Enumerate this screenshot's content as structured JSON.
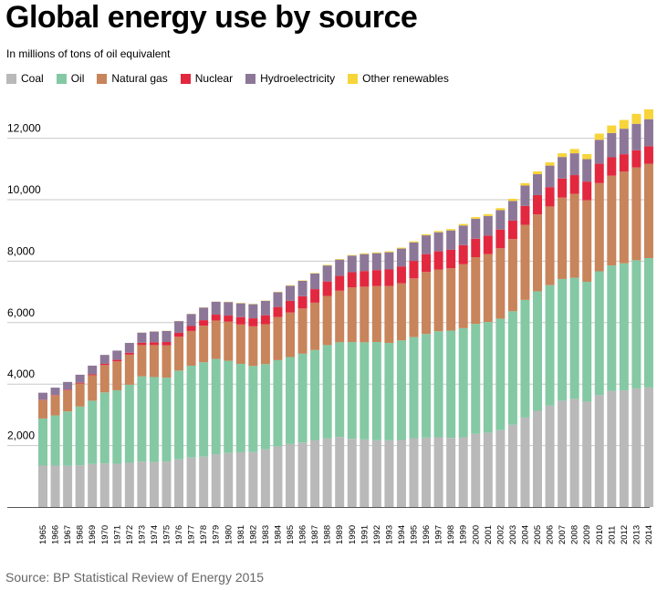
{
  "title": "Global energy use by source",
  "subtitle": "In millions of tons of oil equivalent",
  "source": "Source: BP Statistical Review of Energy 2015",
  "legend": [
    {
      "name": "Coal",
      "color": "#b9b9b9"
    },
    {
      "name": "Oil",
      "color": "#84c9a4"
    },
    {
      "name": "Natural gas",
      "color": "#c8845a"
    },
    {
      "name": "Nuclear",
      "color": "#e2283f"
    },
    {
      "name": "Hydroelectricity",
      "color": "#8d7798"
    },
    {
      "name": "Other renewables",
      "color": "#f7d43a"
    }
  ],
  "chart_data": {
    "type": "bar",
    "stacked": true,
    "title": "Global energy use by source",
    "subtitle": "In millions of tons of oil equivalent",
    "xlabel": "",
    "ylabel": "",
    "ylim": [
      0,
      13000
    ],
    "yticks": [
      2000,
      4000,
      6000,
      8000,
      10000,
      12000
    ],
    "ytick_labels": [
      "2,000",
      "4,000",
      "6,000",
      "8,000",
      "10,000",
      "12,000"
    ],
    "grid": true,
    "legend_position": "top-left",
    "categories": [
      "1965",
      "1966",
      "1967",
      "1968",
      "1969",
      "1970",
      "1971",
      "1972",
      "1973",
      "1974",
      "1975",
      "1976",
      "1977",
      "1978",
      "1979",
      "1980",
      "1981",
      "1982",
      "1983",
      "1984",
      "1985",
      "1986",
      "1987",
      "1988",
      "1989",
      "1990",
      "1991",
      "1992",
      "1993",
      "1994",
      "1995",
      "1996",
      "1997",
      "1998",
      "1999",
      "2000",
      "2001",
      "2002",
      "2003",
      "2004",
      "2005",
      "2006",
      "2007",
      "2008",
      "2009",
      "2010",
      "2011",
      "2012",
      "2013",
      "2014"
    ],
    "series": [
      {
        "name": "Coal",
        "color": "#b9b9b9",
        "values": [
          1350,
          1350,
          1340,
          1360,
          1400,
          1420,
          1410,
          1440,
          1480,
          1470,
          1480,
          1550,
          1610,
          1640,
          1720,
          1760,
          1780,
          1790,
          1880,
          1970,
          2050,
          2100,
          2180,
          2230,
          2280,
          2220,
          2200,
          2170,
          2170,
          2180,
          2240,
          2260,
          2270,
          2250,
          2270,
          2380,
          2420,
          2500,
          2680,
          2910,
          3130,
          3300,
          3460,
          3520,
          3430,
          3640,
          3780,
          3800,
          3860,
          3890
        ]
      },
      {
        "name": "Oil",
        "color": "#84c9a4",
        "values": [
          1530,
          1630,
          1770,
          1910,
          2060,
          2310,
          2390,
          2540,
          2770,
          2760,
          2730,
          2890,
          2990,
          3070,
          3100,
          3000,
          2880,
          2800,
          2770,
          2810,
          2830,
          2890,
          2930,
          3040,
          3080,
          3150,
          3160,
          3200,
          3170,
          3240,
          3290,
          3370,
          3450,
          3490,
          3550,
          3580,
          3600,
          3630,
          3690,
          3830,
          3890,
          3920,
          3960,
          3940,
          3900,
          4030,
          4080,
          4130,
          4170,
          4210
        ]
      },
      {
        "name": "Natural gas",
        "color": "#c8845a",
        "values": [
          600,
          650,
          690,
          750,
          830,
          890,
          940,
          980,
          1020,
          1040,
          1050,
          1100,
          1130,
          1190,
          1250,
          1270,
          1280,
          1290,
          1300,
          1400,
          1450,
          1470,
          1540,
          1600,
          1680,
          1780,
          1810,
          1820,
          1850,
          1860,
          1910,
          2020,
          2010,
          2030,
          2080,
          2170,
          2210,
          2290,
          2350,
          2440,
          2500,
          2560,
          2650,
          2730,
          2650,
          2870,
          2920,
          2990,
          3020,
          3070
        ]
      },
      {
        "name": "Nuclear",
        "color": "#e2283f",
        "values": [
          10,
          15,
          20,
          25,
          30,
          40,
          50,
          60,
          75,
          90,
          110,
          130,
          160,
          180,
          190,
          200,
          240,
          260,
          290,
          330,
          380,
          400,
          440,
          470,
          480,
          490,
          510,
          520,
          540,
          550,
          570,
          580,
          590,
          600,
          620,
          600,
          600,
          610,
          600,
          620,
          630,
          630,
          620,
          610,
          610,
          630,
          600,
          560,
          560,
          570
        ]
      },
      {
        "name": "Hydroelectricity",
        "color": "#8d7798",
        "values": [
          230,
          240,
          250,
          260,
          280,
          290,
          300,
          320,
          330,
          350,
          360,
          380,
          390,
          410,
          420,
          440,
          450,
          460,
          470,
          480,
          490,
          500,
          510,
          520,
          530,
          540,
          550,
          550,
          560,
          580,
          600,
          610,
          620,
          630,
          640,
          650,
          640,
          630,
          640,
          660,
          680,
          700,
          700,
          710,
          730,
          780,
          790,
          830,
          860,
          880
        ]
      },
      {
        "name": "Other renewables",
        "color": "#f7d43a",
        "values": [
          0,
          0,
          0,
          0,
          0,
          0,
          0,
          0,
          5,
          5,
          5,
          5,
          5,
          5,
          5,
          10,
          10,
          10,
          10,
          10,
          15,
          15,
          15,
          20,
          20,
          20,
          25,
          25,
          30,
          30,
          35,
          35,
          40,
          45,
          50,
          55,
          60,
          65,
          70,
          80,
          90,
          105,
          120,
          140,
          165,
          200,
          245,
          285,
          325,
          320
        ]
      }
    ]
  }
}
